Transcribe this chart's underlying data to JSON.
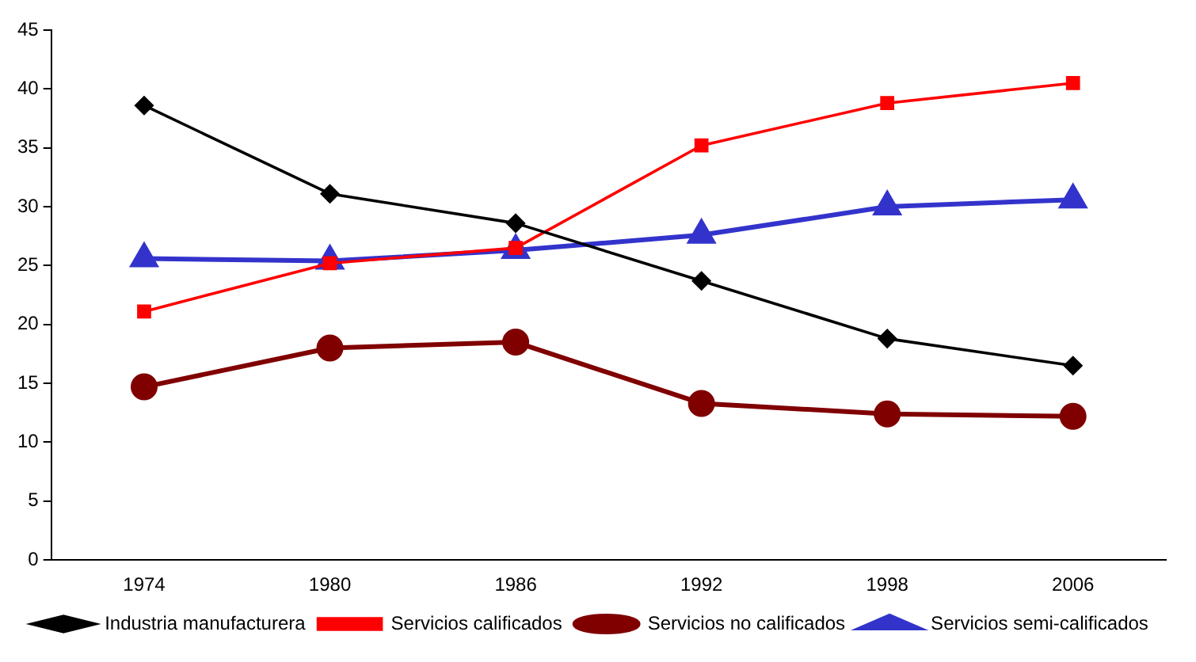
{
  "chart_data": {
    "type": "line",
    "categories": [
      "1974",
      "1980",
      "1986",
      "1992",
      "1998",
      "2006"
    ],
    "series": [
      {
        "name": "Industria manufacturera",
        "color": "#000000",
        "marker": "diamond",
        "values": [
          38.6,
          31.1,
          28.6,
          23.7,
          18.8,
          16.5
        ]
      },
      {
        "name": "Servicios calificados",
        "color": "#ff0000",
        "marker": "square",
        "values": [
          21.1,
          25.2,
          26.5,
          35.2,
          38.8,
          40.5
        ]
      },
      {
        "name": "Servicios no calificados",
        "color": "#800000",
        "marker": "circle",
        "values": [
          14.7,
          18.0,
          18.5,
          13.3,
          12.4,
          12.2
        ]
      },
      {
        "name": "Servicios semi-calificados",
        "color": "#3333cc",
        "marker": "triangle",
        "values": [
          25.6,
          25.4,
          26.3,
          27.6,
          30.0,
          30.6
        ]
      }
    ],
    "ylim": [
      0,
      45
    ],
    "yticks": [
      0,
      5,
      10,
      15,
      20,
      25,
      30,
      35,
      40,
      45
    ],
    "grid": false,
    "legend": "bottom",
    "line_style": "solid"
  }
}
